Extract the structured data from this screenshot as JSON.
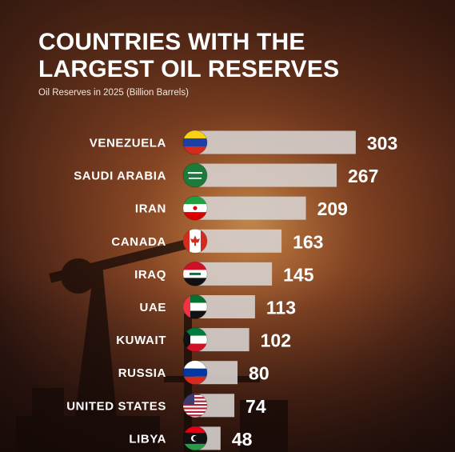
{
  "title": "COUNTRIES WITH THE LARGEST OIL RESERVES",
  "subtitle": "Oil Reserves in 2025 (Billion Barrels)",
  "chart_data": {
    "type": "bar",
    "orientation": "horizontal",
    "categories": [
      "VENEZUELA",
      "SAUDI ARABIA",
      "IRAN",
      "CANADA",
      "IRAQ",
      "UAE",
      "KUWAIT",
      "RUSSIA",
      "UNITED STATES",
      "LIBYA"
    ],
    "values": [
      303,
      267,
      209,
      163,
      145,
      113,
      102,
      80,
      74,
      48
    ],
    "flag_icons": [
      "venezuela-flag-icon",
      "saudi-arabia-flag-icon",
      "iran-flag-icon",
      "canada-flag-icon",
      "iraq-flag-icon",
      "uae-flag-icon",
      "kuwait-flag-icon",
      "russia-flag-icon",
      "united-states-flag-icon",
      "libya-flag-icon"
    ],
    "bar_color": "#d6d0cd",
    "label_color": "#ffffff",
    "grid": false,
    "legend": "none"
  }
}
